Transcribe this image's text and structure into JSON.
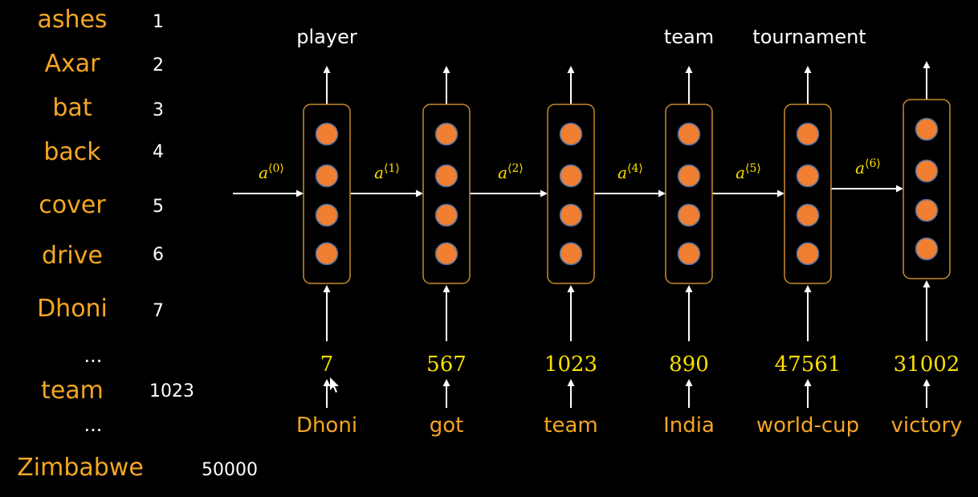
{
  "vocabulary": [
    {
      "word": "ashes",
      "index": "1"
    },
    {
      "word": "Axar",
      "index": "2"
    },
    {
      "word": "bat",
      "index": "3"
    },
    {
      "word": "back",
      "index": "4"
    },
    {
      "word": "cover",
      "index": "5"
    },
    {
      "word": "drive",
      "index": "6"
    },
    {
      "word": "Dhoni",
      "index": "7"
    },
    {
      "word": "...",
      "index": null
    },
    {
      "word": "team",
      "index": "1023"
    },
    {
      "word": "...",
      "index": null
    },
    {
      "word": "Zimbabwe",
      "index": "50000"
    }
  ],
  "cells": [
    {
      "output": "player",
      "token_id": "7",
      "input": "Dhoni",
      "activation_in": "0"
    },
    {
      "output": "",
      "token_id": "567",
      "input": "got",
      "activation_in": "1"
    },
    {
      "output": "",
      "token_id": "1023",
      "input": "team",
      "activation_in": "2"
    },
    {
      "output": "team",
      "token_id": "890",
      "input": "India",
      "activation_in": "4"
    },
    {
      "output": "tournament",
      "token_id": "47561",
      "input": "world-cup",
      "activation_in": "5"
    },
    {
      "output": "",
      "token_id": "31002",
      "input": "victory",
      "activation_in": "6"
    }
  ],
  "activation_symbol": "a",
  "colors": {
    "background": "#000000",
    "vocab_word": "#f5a623",
    "token_id": "#ffe000",
    "neuron": "#f07f32",
    "cell_border": "#c58a2a",
    "arrow": "#ffffff"
  }
}
